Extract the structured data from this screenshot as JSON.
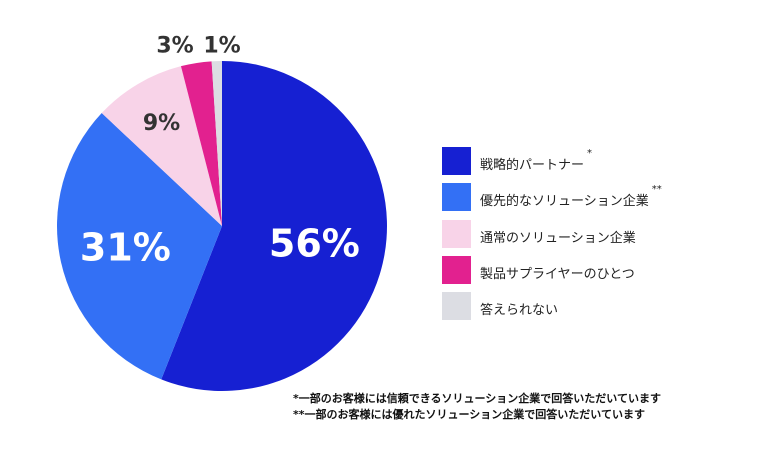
{
  "chart_data": {
    "type": "pie",
    "categories": [
      "戦略的パートナー",
      "優先的なソリューション企業",
      "通常のソリューション企業",
      "製品サプライヤーのひとつ",
      "答えられない"
    ],
    "values": [
      56,
      31,
      9,
      3,
      1
    ],
    "labels": [
      "56%",
      "31%",
      "9%",
      "3%",
      "1%"
    ],
    "legend_markers": [
      "*",
      "**",
      "",
      "",
      ""
    ],
    "colors": [
      "#1620d2",
      "#3370f5",
      "#f8d3e8",
      "#e2218f",
      "#dcdde3"
    ],
    "label_colors": [
      "#ffffff",
      "#ffffff",
      "#333333",
      "#333333",
      "#333333"
    ],
    "legend_position": "right"
  },
  "footnotes": [
    "*一部のお客様には信頼できるソリューション企業で回答いただいています",
    "**一部のお客様には優れたソリューション企業で回答いただいています"
  ]
}
